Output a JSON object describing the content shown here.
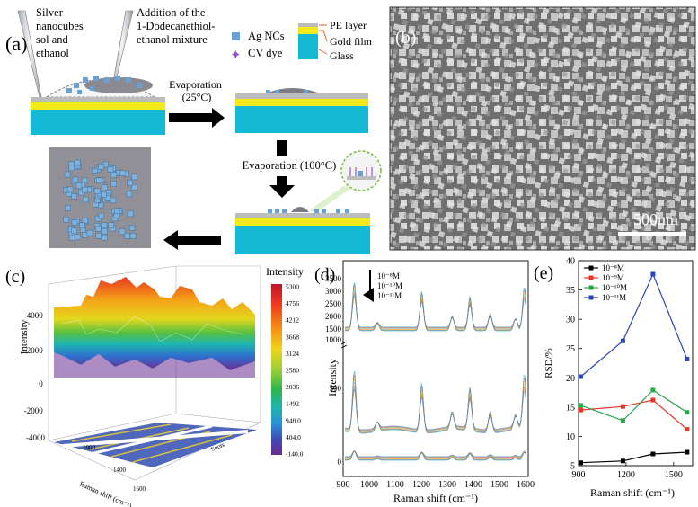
{
  "panel_labels": {
    "a": "(a)",
    "b": "(b)",
    "c": "(c)",
    "d": "(d)",
    "e": "(e)"
  },
  "panel_a": {
    "pipette1_text": [
      "Silver",
      "nanocubes",
      "sol and",
      "ethanol"
    ],
    "pipette2_text": [
      "Addition of the",
      "1-Dodecanethiol-",
      "ethanol mixture"
    ],
    "legend": {
      "ag": "Ag NCs",
      "cv": "CV dye",
      "pe": "PE layer",
      "gold": "Gold film",
      "glass": "Glass"
    },
    "evap1": [
      "Evaporation",
      "(25°C)"
    ],
    "evap2": "Evaporation (100°C)"
  },
  "panel_b": {
    "scale_bar": "500nm"
  },
  "panel_c": {
    "zlabel": "Intensity",
    "z_ticks": [
      "4000",
      "2000",
      "0",
      "-2000",
      "-4000"
    ],
    "xlabel": "Raman shift (cm⁻¹)",
    "ylabel": "Spots",
    "x_ticks": [
      "1000",
      "1400",
      "1600"
    ],
    "colorbar_title": "Intensity",
    "colorbar_ticks": [
      "5300",
      "4756",
      "4212",
      "3668",
      "3124",
      "2580",
      "2036",
      "1492",
      "948.0",
      "404.0",
      "-140.0"
    ]
  },
  "panel_d": {
    "ylabel": "Intensity",
    "xlabel": "Raman shift (cm⁻¹)",
    "x_ticks": [
      "900",
      "1000",
      "1100",
      "1200",
      "1300",
      "1400",
      "1500",
      "1600"
    ],
    "y_ticks_top": [
      "3500",
      "3000",
      "2500",
      "2000",
      "1500",
      "1000"
    ],
    "y_ticks_mid": [
      "500"
    ],
    "y_ticks_bot": [
      "0"
    ],
    "legend": [
      "10⁻⁸M",
      "10⁻¹⁰M",
      "10⁻¹¹M"
    ]
  },
  "chart_data": {
    "type": "line",
    "title": "",
    "xlabel": "Raman shift (cm⁻¹)",
    "ylabel": "RSD/%",
    "x": [
      914,
      1180,
      1370,
      1585
    ],
    "xlim": [
      900,
      1620
    ],
    "ylim": [
      5,
      40
    ],
    "x_ticks": [
      "900",
      "1200",
      "1500"
    ],
    "y_ticks": [
      "5",
      "10",
      "15",
      "20",
      "25",
      "30",
      "35",
      "40"
    ],
    "legend_position": "top-left",
    "series": [
      {
        "name": "10⁻⁸M",
        "color": "#000000",
        "values": [
          5.5,
          5.8,
          7.0,
          7.3
        ]
      },
      {
        "name": "10⁻⁹M",
        "color": "#e8352a",
        "values": [
          14.5,
          15.1,
          16.2,
          11.2
        ]
      },
      {
        "name": "10⁻¹⁰M",
        "color": "#2aa64a",
        "values": [
          15.3,
          12.7,
          17.9,
          14.1
        ]
      },
      {
        "name": "10⁻¹¹M",
        "color": "#2a45b5",
        "values": [
          20.2,
          26.3,
          37.7,
          23.2
        ]
      }
    ]
  }
}
